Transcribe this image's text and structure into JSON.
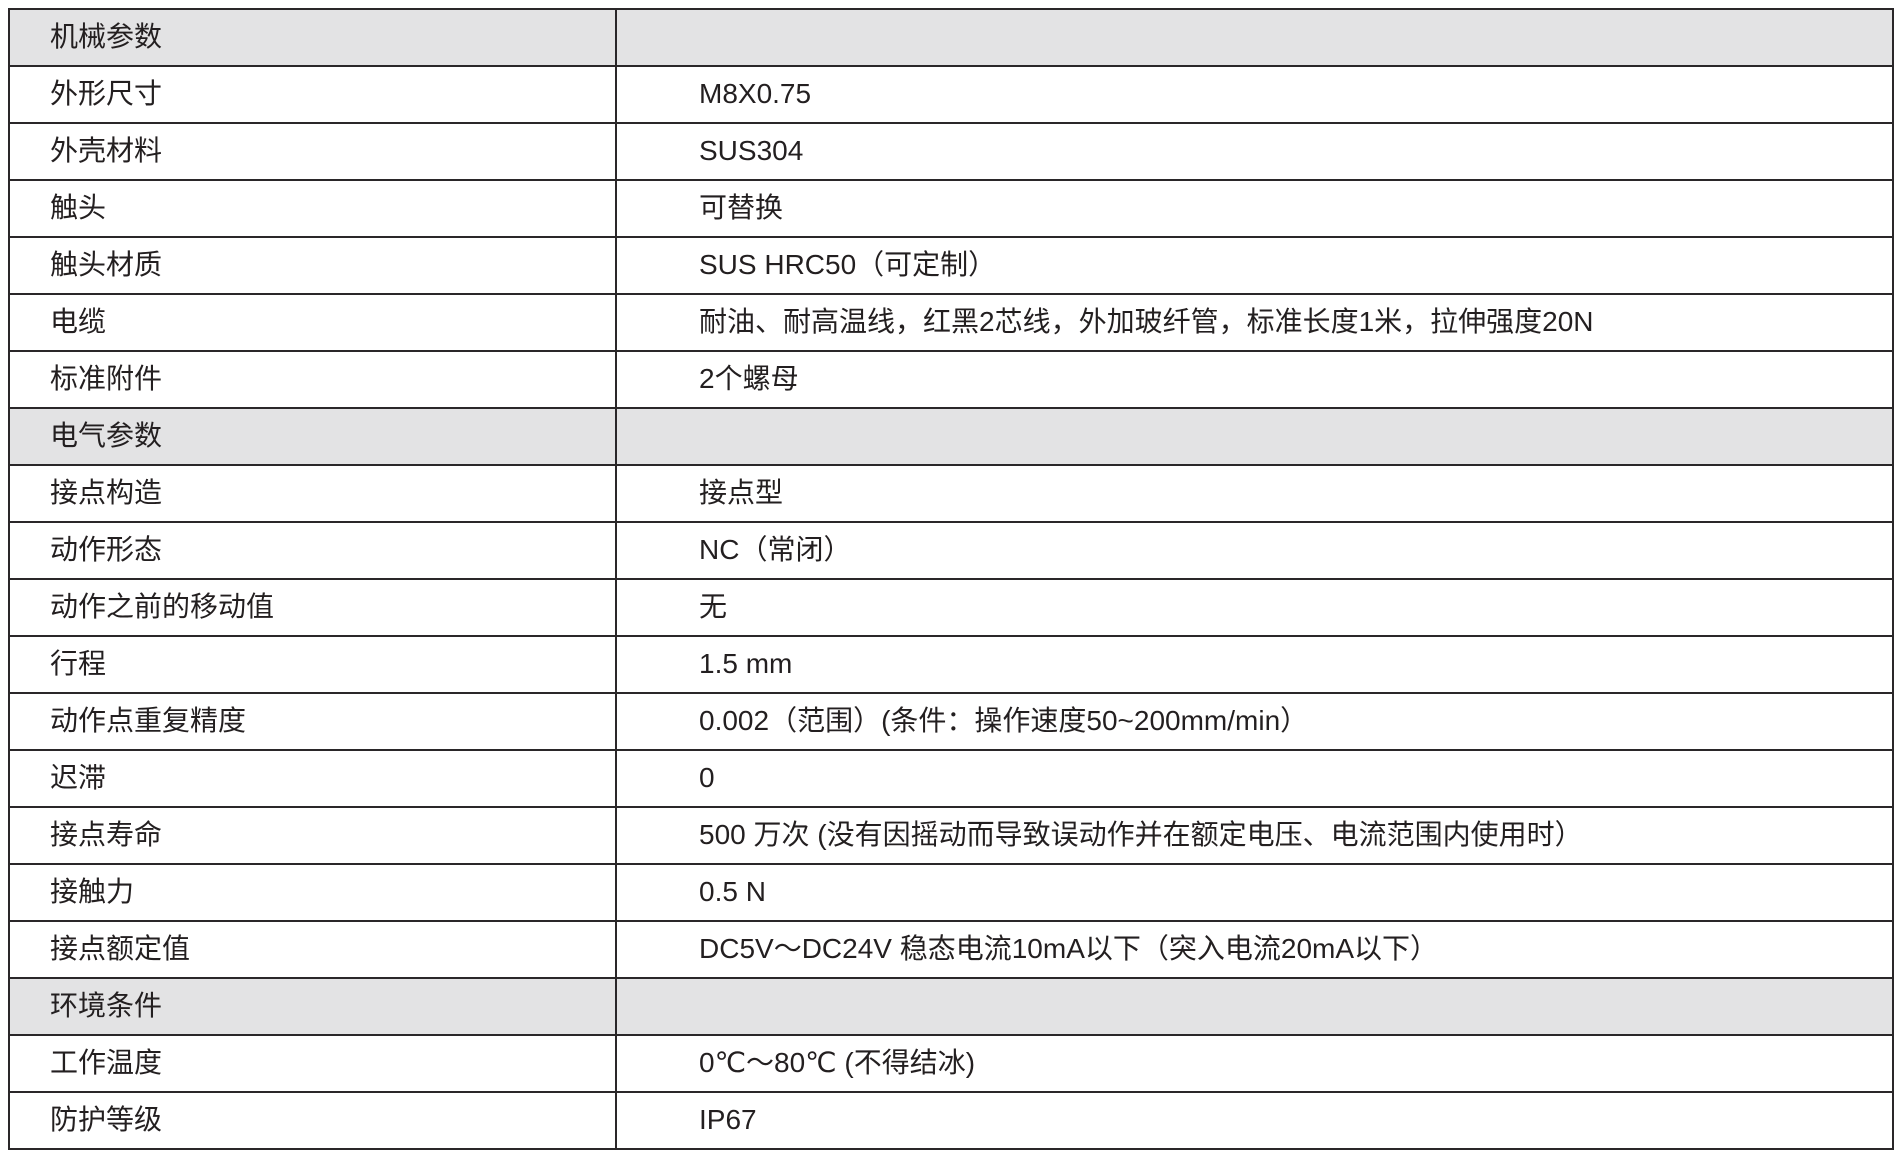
{
  "colors": {
    "section_header_bg": "#e3e3e4",
    "border": "#2a2729",
    "text": "#231f20",
    "row_bg": "#ffffff"
  },
  "table": {
    "sections": [
      {
        "header": "机械参数",
        "rows": [
          {
            "label": "外形尺寸",
            "value": "M8X0.75"
          },
          {
            "label": "外壳材料",
            "value": "SUS304"
          },
          {
            "label": "触头",
            "value": "可替换"
          },
          {
            "label": "触头材质",
            "value": "SUS HRC50（可定制）"
          },
          {
            "label": "电缆",
            "value": "耐油、耐高温线，红黑2芯线，外加玻纤管，标准长度1米，拉伸强度20N"
          },
          {
            "label": "标准附件",
            "value": "2个螺母"
          }
        ]
      },
      {
        "header": "电气参数",
        "rows": [
          {
            "label": "接点构造",
            "value": "接点型"
          },
          {
            "label": "动作形态",
            "value": "NC（常闭）"
          },
          {
            "label": "动作之前的移动值",
            "value": "无"
          },
          {
            "label": "行程",
            "value": "1.5 mm"
          },
          {
            "label": "动作点重复精度",
            "value": "0.002（范围）(条件：操作速度50~200mm/min）"
          },
          {
            "label": "迟滞",
            "value": "0"
          },
          {
            "label": "接点寿命",
            "value": "500 万次 (没有因摇动而导致误动作并在额定电压、电流范围内使用时）"
          },
          {
            "label": "接触力",
            "value": "0.5 N"
          },
          {
            "label": "接点额定值",
            "value": "DC5V～DC24V 稳态电流10mA以下（突入电流20mA以下）"
          }
        ]
      },
      {
        "header": "环境条件",
        "rows": [
          {
            "label": "工作温度",
            "value": "0℃～80℃ (不得结冰)"
          },
          {
            "label": "防护等级",
            "value": "IP67"
          }
        ]
      }
    ]
  }
}
